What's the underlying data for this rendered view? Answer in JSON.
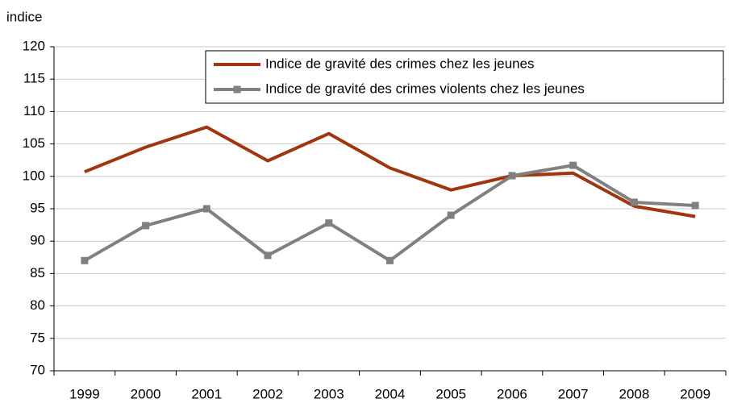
{
  "chart_data": {
    "type": "line",
    "y_axis_label": "indice",
    "categories": [
      "1999",
      "2000",
      "2001",
      "2002",
      "2003",
      "2004",
      "2005",
      "2006",
      "2007",
      "2008",
      "2009"
    ],
    "series": [
      {
        "name": "Indice de gravité des crimes chez les jeunes",
        "color": "#a0360f",
        "marker": "none",
        "values": [
          100.7,
          104.5,
          107.6,
          102.4,
          106.6,
          101.3,
          97.9,
          100.1,
          100.5,
          95.4,
          93.8
        ]
      },
      {
        "name": "Indice de gravité des crimes violents chez les jeunes",
        "color": "#808080",
        "marker": "square",
        "values": [
          87.0,
          92.4,
          95.0,
          87.8,
          92.8,
          87.0,
          94.0,
          100.1,
          101.7,
          96.0,
          95.5
        ]
      }
    ],
    "ylim": [
      70,
      120
    ],
    "yticks": [
      70,
      75,
      80,
      85,
      90,
      95,
      100,
      105,
      110,
      115,
      120
    ],
    "grid": true,
    "legend": "upper right"
  }
}
